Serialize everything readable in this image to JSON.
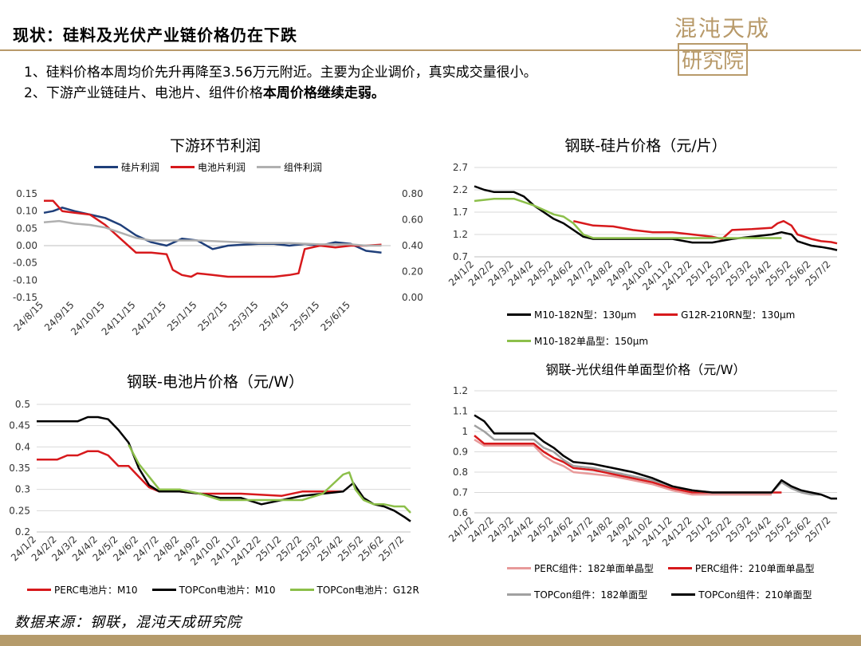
{
  "header": {
    "title": "现状：硅料及光伏产业链价格仍在下跌",
    "logo_text": "混沌天成",
    "logo_box_text": "研究院"
  },
  "bullets": {
    "line1": "1、硅料价格本周均价先升再降至3.56万元附近。主要为企业调价，真实成交量很小。",
    "line2_prefix": "2、下游产业链硅片、电池片、组件价格",
    "line2_bold": "本周价格继续走弱。"
  },
  "footer": {
    "source": "数据来源：钢联，混沌天成研究院"
  },
  "colors": {
    "accent": "#b59b6b",
    "navy": "#1f3f7a",
    "red": "#d7191c",
    "gray": "#b0b0b0",
    "black": "#000000",
    "green": "#8cbf4a",
    "pink": "#e89a9a",
    "midgray": "#a0a0a0"
  },
  "chart_data": [
    {
      "id": "profit",
      "type": "line",
      "title": "下游环节利润",
      "x_labels": [
        "24/8/15",
        "24/9/15",
        "24/10/15",
        "24/11/15",
        "24/12/15",
        "25/1/15",
        "25/2/15",
        "25/3/15",
        "25/4/15",
        "25/5/15",
        "25/6/15"
      ],
      "x_range": [
        0,
        11.3
      ],
      "ylim_left": [
        -0.15,
        0.15
      ],
      "yticks_left": [
        "0.15",
        "0.10",
        "0.05",
        "0.00",
        "-0.05",
        "-0.10",
        "-0.15"
      ],
      "ylim_right": [
        0,
        0.8
      ],
      "yticks_right": [
        "0.80",
        "0.60",
        "0.40",
        "0.20",
        "0.00"
      ],
      "series": [
        {
          "name": "硅片利润",
          "color": "#1f3f7a",
          "axis": "left",
          "x": [
            0,
            0.3,
            0.6,
            1,
            1.5,
            2,
            2.5,
            3,
            3.5,
            4,
            4.5,
            5,
            5.5,
            6,
            6.5,
            7,
            7.5,
            8,
            8.5,
            9,
            9.5,
            10,
            10.5,
            11
          ],
          "y": [
            0.095,
            0.1,
            0.11,
            0.1,
            0.09,
            0.08,
            0.06,
            0.03,
            0.01,
            0.0,
            0.02,
            0.015,
            -0.01,
            0.0,
            0.003,
            0.005,
            0.005,
            0.0,
            0.005,
            0.0,
            0.01,
            0.005,
            -0.015,
            -0.02
          ]
        },
        {
          "name": "电池片利润",
          "color": "#d7191c",
          "axis": "left",
          "x": [
            0,
            0.3,
            0.6,
            1,
            1.5,
            2,
            2.5,
            3,
            3.5,
            4,
            4.2,
            4.5,
            4.8,
            5,
            5.5,
            6,
            6.5,
            7,
            7.5,
            8,
            8.3,
            8.5,
            9,
            9.5,
            10,
            10.5,
            11
          ],
          "y": [
            0.13,
            0.13,
            0.1,
            0.095,
            0.09,
            0.06,
            0.02,
            -0.02,
            -0.02,
            -0.025,
            -0.07,
            -0.085,
            -0.09,
            -0.08,
            -0.085,
            -0.09,
            -0.09,
            -0.09,
            -0.09,
            -0.085,
            -0.08,
            -0.01,
            0.0,
            -0.005,
            0.0,
            0.0,
            0.003
          ]
        },
        {
          "name": "组件利润",
          "color": "#b0b0b0",
          "axis": "right",
          "x": [
            0,
            0.5,
            1,
            1.5,
            2,
            2.5,
            3,
            3.5,
            4,
            5,
            6,
            7,
            8,
            9,
            10,
            10.5,
            11
          ],
          "y": [
            0.58,
            0.59,
            0.57,
            0.56,
            0.54,
            0.5,
            0.46,
            0.44,
            0.44,
            0.44,
            0.43,
            0.42,
            0.42,
            0.41,
            0.41,
            0.4,
            0.4
          ]
        }
      ]
    },
    {
      "id": "wafer",
      "type": "line",
      "title": "钢联-硅片价格（元/片）",
      "x_labels": [
        "24/1/2",
        "24/2/2",
        "24/3/2",
        "24/4/2",
        "24/5/2",
        "24/6/2",
        "24/7/2",
        "24/8/2",
        "24/9/2",
        "24/10/2",
        "24/11/2",
        "24/12/2",
        "25/1/2",
        "25/2/2",
        "25/3/2",
        "25/4/2",
        "25/5/2",
        "25/6/2",
        "25/7/2"
      ],
      "x_range": [
        0,
        18.3
      ],
      "ylim": [
        0.7,
        2.7
      ],
      "yticks": [
        "2.7",
        "2.2",
        "1.7",
        "1.2",
        "0.7"
      ],
      "series": [
        {
          "name": "M10-182N型：130μm",
          "color": "#000000",
          "x": [
            0,
            0.5,
            1,
            2,
            2.5,
            3,
            3.5,
            4,
            4.5,
            5,
            5.5,
            6,
            8,
            10,
            11,
            12,
            13,
            14,
            15,
            15.5,
            16,
            16.3,
            17,
            17.5,
            18,
            18.3
          ],
          "y": [
            2.28,
            2.2,
            2.15,
            2.15,
            2.05,
            1.85,
            1.7,
            1.55,
            1.45,
            1.3,
            1.15,
            1.1,
            1.1,
            1.1,
            1.02,
            1.02,
            1.1,
            1.15,
            1.2,
            1.25,
            1.2,
            1.05,
            0.95,
            0.92,
            0.88,
            0.85
          ]
        },
        {
          "name": "G12R-210RN型：130μm",
          "color": "#d7191c",
          "x": [
            5,
            5.5,
            6,
            7,
            8,
            9,
            10,
            11,
            12,
            12.5,
            13,
            14,
            15,
            15.3,
            15.6,
            16,
            16.3,
            17,
            17.5,
            18,
            18.3
          ],
          "y": [
            1.5,
            1.45,
            1.4,
            1.38,
            1.3,
            1.25,
            1.25,
            1.2,
            1.15,
            1.1,
            1.3,
            1.32,
            1.35,
            1.45,
            1.5,
            1.4,
            1.2,
            1.1,
            1.05,
            1.03,
            1.0
          ]
        },
        {
          "name": "M10-182单晶型：150μm",
          "color": "#8cbf4a",
          "x": [
            0,
            1,
            2,
            3,
            3.5,
            4,
            4.5,
            5,
            5.5,
            6,
            8,
            10,
            12,
            14,
            15.5
          ],
          "y": [
            1.95,
            2.0,
            2.0,
            1.85,
            1.75,
            1.65,
            1.6,
            1.45,
            1.2,
            1.12,
            1.12,
            1.12,
            1.12,
            1.12,
            1.12
          ]
        }
      ]
    },
    {
      "id": "cell",
      "type": "line",
      "title": "钢联-电池片价格（元/W）",
      "x_labels": [
        "24/1/2",
        "24/2/2",
        "24/3/2",
        "24/4/2",
        "24/5/2",
        "24/6/2",
        "24/7/2",
        "24/8/2",
        "24/9/2",
        "24/10/2",
        "24/11/2",
        "24/12/2",
        "25/1/2",
        "25/2/2",
        "25/3/2",
        "25/4/2",
        "25/5/2",
        "25/6/2",
        "25/7/2"
      ],
      "x_range": [
        0,
        18.3
      ],
      "ylim": [
        0.2,
        0.5
      ],
      "yticks": [
        "0.5",
        "0.45",
        "0.4",
        "0.35",
        "0.3",
        "0.25",
        "0.2"
      ],
      "series": [
        {
          "name": "PERC电池片：M10",
          "color": "#d7191c",
          "x": [
            0,
            1,
            1.5,
            2,
            2.5,
            3,
            3.5,
            4,
            4.5,
            5,
            5.5,
            6,
            7,
            8,
            10,
            12,
            13,
            14,
            15
          ],
          "y": [
            0.37,
            0.37,
            0.38,
            0.38,
            0.39,
            0.39,
            0.38,
            0.355,
            0.355,
            0.33,
            0.305,
            0.295,
            0.295,
            0.29,
            0.29,
            0.285,
            0.295,
            0.295,
            0.295
          ]
        },
        {
          "name": "TOPCon电池片：M10",
          "color": "#000000",
          "x": [
            0,
            1,
            2,
            2.5,
            3,
            3.5,
            4,
            4.5,
            5,
            5.5,
            6,
            7,
            8,
            9,
            10,
            11,
            12,
            13,
            14,
            15,
            15.5,
            16,
            16.5,
            17,
            17.5,
            18,
            18.3
          ],
          "y": [
            0.46,
            0.46,
            0.46,
            0.47,
            0.47,
            0.465,
            0.44,
            0.41,
            0.35,
            0.31,
            0.295,
            0.295,
            0.29,
            0.28,
            0.28,
            0.265,
            0.275,
            0.285,
            0.29,
            0.295,
            0.315,
            0.28,
            0.265,
            0.26,
            0.25,
            0.235,
            0.225
          ]
        },
        {
          "name": "TOPCon电池片：G12R",
          "color": "#8cbf4a",
          "x": [
            4.5,
            5,
            5.5,
            6,
            7,
            8,
            9,
            10,
            11,
            12,
            13,
            14,
            15,
            15.3,
            15.6,
            16,
            16.5,
            17,
            17.5,
            18,
            18.3
          ],
          "y": [
            0.405,
            0.36,
            0.33,
            0.3,
            0.3,
            0.29,
            0.275,
            0.275,
            0.275,
            0.275,
            0.275,
            0.29,
            0.335,
            0.34,
            0.3,
            0.275,
            0.265,
            0.265,
            0.26,
            0.26,
            0.245
          ]
        }
      ]
    },
    {
      "id": "module",
      "type": "line",
      "title": "钢联-光伏组件单面型价格（元/W）",
      "x_labels": [
        "24/1/2",
        "24/2/2",
        "24/3/2",
        "24/4/2",
        "24/5/2",
        "24/6/2",
        "24/7/2",
        "24/8/2",
        "24/9/2",
        "24/10/2",
        "24/11/2",
        "24/12/2",
        "25/1/2",
        "25/2/2",
        "25/3/2",
        "25/4/2",
        "25/5/2",
        "25/6/2",
        "25/7/2"
      ],
      "x_range": [
        0,
        18.3
      ],
      "ylim": [
        0.6,
        1.2
      ],
      "yticks": [
        "1.2",
        "1.1",
        "1",
        "0.9",
        "0.8",
        "0.7",
        "0.6"
      ],
      "series": [
        {
          "name": "PERC组件：182单面单晶型",
          "color": "#e89a9a",
          "x": [
            0,
            0.5,
            1,
            2,
            3,
            3.5,
            4,
            4.5,
            5,
            6,
            7,
            8,
            9,
            10,
            11,
            12,
            13,
            14,
            15
          ],
          "y": [
            0.96,
            0.93,
            0.93,
            0.93,
            0.93,
            0.88,
            0.85,
            0.83,
            0.8,
            0.79,
            0.78,
            0.76,
            0.74,
            0.71,
            0.69,
            0.69,
            0.69,
            0.69,
            0.69
          ]
        },
        {
          "name": "PERC组件：210单面单晶型",
          "color": "#d7191c",
          "x": [
            0,
            0.5,
            1,
            2,
            3,
            3.5,
            4,
            4.5,
            5,
            6,
            7,
            8,
            9,
            10,
            11,
            12,
            13,
            14,
            15,
            15.5
          ],
          "y": [
            0.98,
            0.94,
            0.94,
            0.94,
            0.94,
            0.9,
            0.87,
            0.85,
            0.82,
            0.81,
            0.79,
            0.77,
            0.75,
            0.72,
            0.7,
            0.7,
            0.7,
            0.7,
            0.7,
            0.7
          ]
        },
        {
          "name": "TOPCon组件：182单面型",
          "color": "#a0a0a0",
          "x": [
            0,
            0.5,
            1,
            2,
            3,
            3.5,
            4,
            4.5,
            5,
            6,
            7,
            8,
            9,
            10,
            11,
            12,
            13,
            14,
            15,
            15.5,
            16,
            16.5,
            17,
            17.5,
            18,
            18.3
          ],
          "y": [
            1.03,
            1.0,
            0.96,
            0.96,
            0.96,
            0.92,
            0.9,
            0.86,
            0.83,
            0.82,
            0.8,
            0.78,
            0.76,
            0.73,
            0.71,
            0.7,
            0.7,
            0.7,
            0.7,
            0.75,
            0.72,
            0.7,
            0.69,
            0.69,
            0.67,
            0.67
          ]
        },
        {
          "name": "TOPCon组件：210单面型",
          "color": "#000000",
          "x": [
            0,
            0.5,
            1,
            2,
            3,
            3.5,
            4,
            4.5,
            5,
            6,
            7,
            8,
            9,
            10,
            11,
            12,
            13,
            14,
            15,
            15.5,
            16,
            16.5,
            17,
            17.5,
            18,
            18.3
          ],
          "y": [
            1.08,
            1.05,
            0.99,
            0.99,
            0.99,
            0.95,
            0.92,
            0.88,
            0.85,
            0.84,
            0.82,
            0.8,
            0.77,
            0.73,
            0.71,
            0.7,
            0.7,
            0.7,
            0.7,
            0.76,
            0.73,
            0.71,
            0.7,
            0.69,
            0.67,
            0.67
          ]
        }
      ]
    }
  ]
}
